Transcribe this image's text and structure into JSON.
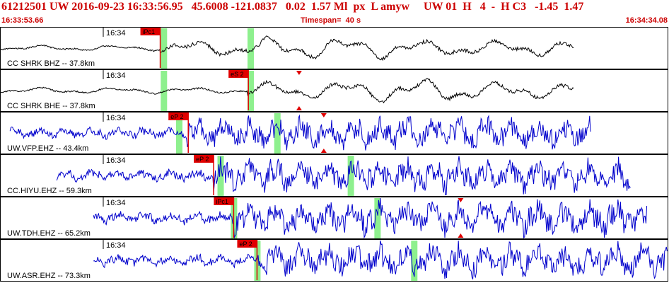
{
  "header": {
    "title": "61212501 UW 2016-09-23 16:33:56.95   45.6008 -121.0837   0.02  1.57 Ml  px  L amyw     UW 01  H   4  -  H C3   -1.45  1.47",
    "start_time": "16:33:53.66",
    "timespan": "Timespan=  40 s",
    "end_time": "16:34:34.08"
  },
  "colors": {
    "header_text": "#cc0000",
    "trace_black": "#000000",
    "trace_blue": "#0000cc",
    "pick": "#e00000",
    "window": "#8ef08e"
  },
  "traces": [
    {
      "label": "CC SHRK BHZ -- 37.8km",
      "time_tick": "16:34",
      "pick_label": "iPc1",
      "color": "black",
      "amp": 0.55,
      "start": 0.0,
      "end": 0.86,
      "onset": 0.24,
      "seed": 11,
      "green": [
        0.245,
        0.375
      ],
      "pick": 0.24,
      "extra_pick": null
    },
    {
      "label": "CC SHRK BHE -- 37.8km",
      "time_tick": "16:34",
      "pick_label": "eS 2",
      "color": "black",
      "amp": 0.6,
      "start": 0.0,
      "end": 0.86,
      "onset": 0.37,
      "seed": 23,
      "green": [
        0.245,
        0.375
      ],
      "pick": 0.372,
      "extra_pick": 0.448
    },
    {
      "label": "UW.VFP.EHZ -- 43.4km",
      "time_tick": "16:34",
      "pick_label": "eP 2",
      "color": "blue",
      "amp": 0.75,
      "start": 0.015,
      "end": 0.885,
      "onset": 0.28,
      "seed": 37,
      "green": [
        0.268,
        0.415
      ],
      "pick": 0.282,
      "extra_pick": 0.485
    },
    {
      "label": "CC.HIYU.EHZ -- 59.3km",
      "time_tick": "16:34",
      "pick_label": "eP 2",
      "color": "blue",
      "amp": 0.8,
      "start": 0.085,
      "end": 0.945,
      "onset": 0.32,
      "seed": 51,
      "green": [
        0.33,
        0.525
      ],
      "pick": 0.32,
      "extra_pick": null
    },
    {
      "label": "UW.TDH.EHZ -- 65.2km",
      "time_tick": "16:34",
      "pick_label": "iPc1",
      "color": "blue",
      "amp": 0.8,
      "start": 0.14,
      "end": 0.97,
      "onset": 0.35,
      "seed": 67,
      "green": [
        0.35,
        0.565
      ],
      "pick": 0.35,
      "extra_pick": 0.69
    },
    {
      "label": "UW.ASR.EHZ -- 73.3km",
      "time_tick": "16:34",
      "pick_label": "eP 2",
      "color": "blue",
      "amp": 0.8,
      "start": 0.14,
      "end": 1.0,
      "onset": 0.385,
      "seed": 83,
      "green": [
        0.385,
        0.62
      ],
      "pick": 0.385,
      "extra_pick": null
    }
  ]
}
